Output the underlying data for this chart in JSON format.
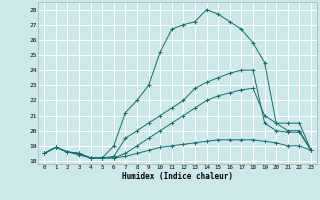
{
  "xlabel": "Humidex (Indice chaleur)",
  "background_color": "#cce8e8",
  "grid_color": "#ffffff",
  "line_color": "#1a6b6b",
  "xlim": [
    -0.5,
    23.5
  ],
  "ylim": [
    17.8,
    28.5
  ],
  "xticks": [
    0,
    1,
    2,
    3,
    4,
    5,
    6,
    7,
    8,
    9,
    10,
    11,
    12,
    13,
    14,
    15,
    16,
    17,
    18,
    19,
    20,
    21,
    22,
    23
  ],
  "yticks": [
    18,
    19,
    20,
    21,
    22,
    23,
    24,
    25,
    26,
    27,
    28
  ],
  "curve_high_x": [
    0,
    1,
    2,
    3,
    4,
    5,
    6,
    7,
    8,
    9,
    10,
    11,
    12,
    13,
    14,
    15,
    16,
    17,
    18,
    19,
    20,
    21,
    22,
    23
  ],
  "curve_high_y": [
    18.5,
    18.9,
    18.6,
    18.5,
    18.2,
    18.2,
    19.0,
    21.2,
    22.0,
    23.0,
    25.2,
    26.7,
    27.0,
    27.2,
    28.0,
    27.7,
    27.2,
    26.7,
    25.8,
    24.5,
    20.5,
    20.0,
    20.0,
    18.7
  ],
  "curve_mid_x": [
    0,
    1,
    2,
    3,
    4,
    5,
    6,
    7,
    8,
    9,
    10,
    11,
    12,
    13,
    14,
    15,
    16,
    17,
    18,
    19,
    20,
    21,
    22,
    23
  ],
  "curve_mid_y": [
    18.5,
    18.9,
    18.6,
    18.4,
    18.2,
    18.2,
    18.3,
    19.5,
    20.0,
    20.5,
    21.0,
    21.5,
    22.0,
    22.8,
    23.2,
    23.5,
    23.8,
    24.0,
    24.0,
    20.5,
    20.0,
    19.9,
    19.9,
    18.7
  ],
  "curve_low2_x": [
    0,
    1,
    2,
    3,
    4,
    5,
    6,
    7,
    8,
    9,
    10,
    11,
    12,
    13,
    14,
    15,
    16,
    17,
    18,
    19,
    20,
    21,
    22,
    23
  ],
  "curve_low2_y": [
    18.5,
    18.9,
    18.6,
    18.5,
    18.2,
    18.2,
    18.2,
    18.5,
    19.0,
    19.5,
    20.0,
    20.5,
    21.0,
    21.5,
    22.0,
    22.3,
    22.5,
    22.7,
    22.8,
    21.0,
    20.5,
    20.5,
    20.5,
    18.7
  ],
  "curve_flat_x": [
    0,
    1,
    2,
    3,
    4,
    5,
    6,
    7,
    8,
    9,
    10,
    11,
    12,
    13,
    14,
    15,
    16,
    17,
    18,
    19,
    20,
    21,
    22,
    23
  ],
  "curve_flat_y": [
    18.5,
    18.9,
    18.6,
    18.5,
    18.2,
    18.2,
    18.2,
    18.3,
    18.5,
    18.7,
    18.9,
    19.0,
    19.1,
    19.2,
    19.3,
    19.4,
    19.4,
    19.4,
    19.4,
    19.3,
    19.2,
    19.0,
    19.0,
    18.7
  ]
}
